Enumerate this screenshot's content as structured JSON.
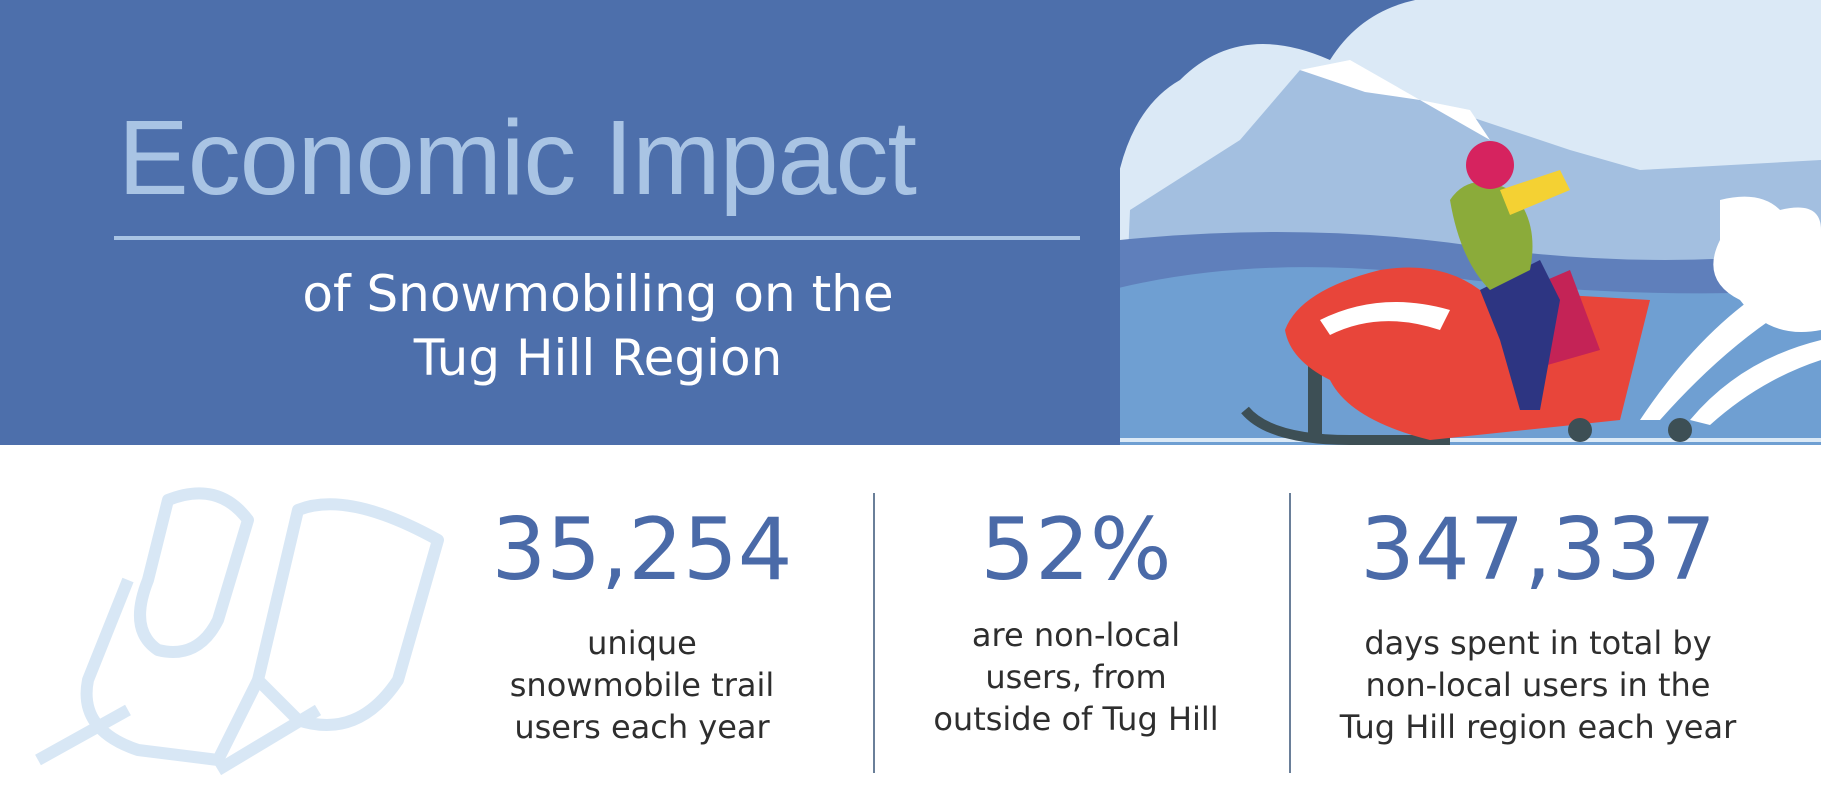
{
  "header": {
    "title": "Economic Impact",
    "subtitle_line1": "of Snowmobiling on the",
    "subtitle_line2": "Tug Hill Region"
  },
  "stats": [
    {
      "value": "35,254",
      "lines": [
        "unique",
        "snowmobile trail",
        "users each year"
      ]
    },
    {
      "value": "52%",
      "lines": [
        "are non-local",
        "users, from",
        "outside of Tug Hill"
      ]
    },
    {
      "value": "347,337",
      "lines": [
        "days spent in total by",
        "non-local users in the",
        "Tug Hill region each year"
      ]
    }
  ],
  "colors": {
    "banner": "#4d6fab",
    "title": "#a9c4e4",
    "accent": "#4a6aa8",
    "sled": "#e8453a"
  },
  "icons": [
    "snowmobile-rider-illustration",
    "snowmobile-outline-icon"
  ]
}
